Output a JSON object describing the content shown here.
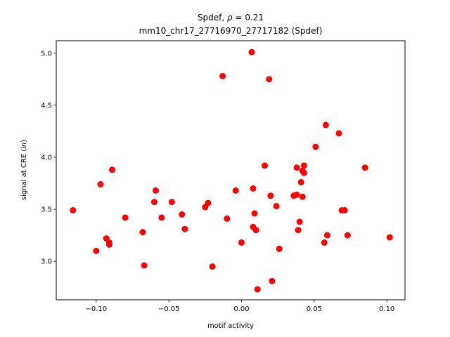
{
  "chart_data": {
    "type": "scatter",
    "title_line1": "Spdef, ρ = 0.21",
    "title_line2": "mm10_chr17_27716970_27717182 (Spdef)",
    "xlabel": "motif activity",
    "ylabel_prefix": "signal at CRE (",
    "ylabel_italic": "ln",
    "ylabel_suffix": ")",
    "xlim": [
      -0.1275,
      0.1125
    ],
    "ylim": [
      2.63,
      5.12
    ],
    "xticks": [
      -0.1,
      -0.05,
      0.0,
      0.05,
      0.1
    ],
    "xtick_labels": [
      "−0.10",
      "−0.05",
      "0.00",
      "0.05",
      "0.10"
    ],
    "yticks": [
      3.0,
      3.5,
      4.0,
      4.5,
      5.0
    ],
    "ytick_labels": [
      "3.0",
      "3.5",
      "4.0",
      "4.5",
      "5.0"
    ],
    "marker_color": "#ff0000",
    "grid": false,
    "points": [
      {
        "x": -0.116,
        "y": 3.49
      },
      {
        "x": -0.1,
        "y": 3.1
      },
      {
        "x": -0.097,
        "y": 3.74
      },
      {
        "x": -0.093,
        "y": 3.22
      },
      {
        "x": -0.091,
        "y": 3.16
      },
      {
        "x": -0.091,
        "y": 3.18
      },
      {
        "x": -0.089,
        "y": 3.88
      },
      {
        "x": -0.08,
        "y": 3.42
      },
      {
        "x": -0.068,
        "y": 3.28
      },
      {
        "x": -0.067,
        "y": 2.96
      },
      {
        "x": -0.06,
        "y": 3.57
      },
      {
        "x": -0.059,
        "y": 3.68
      },
      {
        "x": -0.055,
        "y": 3.42
      },
      {
        "x": -0.048,
        "y": 3.57
      },
      {
        "x": -0.041,
        "y": 3.45
      },
      {
        "x": -0.039,
        "y": 3.31
      },
      {
        "x": -0.025,
        "y": 3.52
      },
      {
        "x": -0.023,
        "y": 3.56
      },
      {
        "x": -0.02,
        "y": 2.95
      },
      {
        "x": -0.013,
        "y": 4.78
      },
      {
        "x": -0.01,
        "y": 3.41
      },
      {
        "x": -0.004,
        "y": 3.68
      },
      {
        "x": 0.0,
        "y": 3.18
      },
      {
        "x": 0.007,
        "y": 5.01
      },
      {
        "x": 0.008,
        "y": 3.33
      },
      {
        "x": 0.008,
        "y": 3.7
      },
      {
        "x": 0.009,
        "y": 3.46
      },
      {
        "x": 0.01,
        "y": 3.3
      },
      {
        "x": 0.011,
        "y": 2.73
      },
      {
        "x": 0.016,
        "y": 3.92
      },
      {
        "x": 0.019,
        "y": 4.75
      },
      {
        "x": 0.02,
        "y": 3.63
      },
      {
        "x": 0.021,
        "y": 2.81
      },
      {
        "x": 0.024,
        "y": 3.53
      },
      {
        "x": 0.026,
        "y": 3.12
      },
      {
        "x": 0.036,
        "y": 3.63
      },
      {
        "x": 0.038,
        "y": 3.9
      },
      {
        "x": 0.038,
        "y": 3.64
      },
      {
        "x": 0.039,
        "y": 3.3
      },
      {
        "x": 0.04,
        "y": 3.38
      },
      {
        "x": 0.041,
        "y": 3.76
      },
      {
        "x": 0.042,
        "y": 3.87
      },
      {
        "x": 0.042,
        "y": 3.62
      },
      {
        "x": 0.043,
        "y": 3.92
      },
      {
        "x": 0.043,
        "y": 3.85
      },
      {
        "x": 0.051,
        "y": 4.1
      },
      {
        "x": 0.057,
        "y": 3.18
      },
      {
        "x": 0.058,
        "y": 4.31
      },
      {
        "x": 0.059,
        "y": 3.25
      },
      {
        "x": 0.067,
        "y": 4.23
      },
      {
        "x": 0.069,
        "y": 3.49
      },
      {
        "x": 0.071,
        "y": 3.49
      },
      {
        "x": 0.073,
        "y": 3.25
      },
      {
        "x": 0.085,
        "y": 3.9
      },
      {
        "x": 0.102,
        "y": 3.23
      }
    ]
  }
}
